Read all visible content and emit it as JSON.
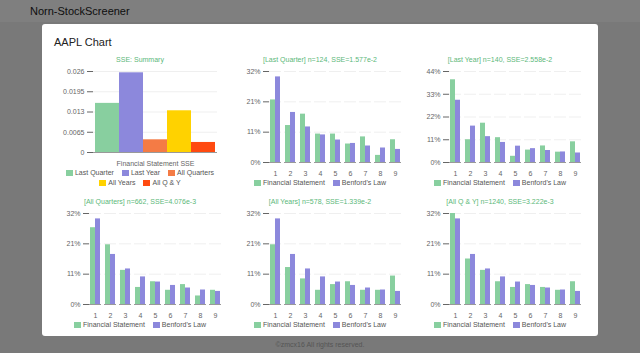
{
  "page": {
    "app_title": "Norn-StockScreener",
    "modal_title": "AAPL Chart",
    "footer": "©zmcx16 All rights reserved."
  },
  "chart_data": [
    {
      "type": "bar",
      "title": "SSE: Summary",
      "categories": [
        "Financial Statement SSE"
      ],
      "series": [
        {
          "name": "Last Quarter",
          "color": "#88cf9f",
          "values": [
            0.01577
          ]
        },
        {
          "name": "Last Year",
          "color": "#8c88dc",
          "values": [
            0.02558
          ]
        },
        {
          "name": "All Quarters",
          "color": "#f47b45",
          "values": [
            0.004076
          ]
        },
        {
          "name": "All Years",
          "color": "#ffd200",
          "values": [
            0.01339
          ]
        },
        {
          "name": "All Q & Y",
          "color": "#ff4a10",
          "values": [
            0.003222
          ]
        }
      ],
      "ylim": [
        0,
        0.026
      ],
      "yticks": [
        0,
        0.0065,
        0.013,
        0.0195,
        0.026
      ],
      "grid": true,
      "legend": "bottom"
    },
    {
      "type": "bar",
      "title": "[Last Quarter] n=124, SSE=1.577e-2",
      "categories": [
        1,
        2,
        3,
        4,
        5,
        6,
        7,
        8,
        9
      ],
      "series": [
        {
          "name": "Financial Statement",
          "color": "#88cf9f",
          "values": [
            22,
            13,
            17,
            10,
            10,
            6.5,
            9,
            2.5,
            8
          ]
        },
        {
          "name": "Benford's Law",
          "color": "#8c88dc",
          "values": [
            30.1,
            17.6,
            12.5,
            9.7,
            7.9,
            6.7,
            5.8,
            5.1,
            4.6
          ]
        }
      ],
      "ylim": [
        0,
        32
      ],
      "yticks": [
        {
          "value": 0,
          "label": "0%"
        },
        {
          "value": 10.67,
          "label": "11%"
        },
        {
          "value": 21.33,
          "label": "21%"
        },
        {
          "value": 32,
          "label": "32%"
        }
      ],
      "grid": true,
      "legend": "bottom"
    },
    {
      "type": "bar",
      "title": "[Last Year] n=140, SSE=2.558e-2",
      "categories": [
        1,
        2,
        3,
        4,
        5,
        6,
        7,
        8,
        9
      ],
      "series": [
        {
          "name": "Financial Statement",
          "color": "#88cf9f",
          "values": [
            40,
            11,
            19,
            12,
            3,
            6,
            8,
            5,
            10
          ]
        },
        {
          "name": "Benford's Law",
          "color": "#8c88dc",
          "values": [
            30.1,
            17.6,
            12.5,
            9.7,
            7.9,
            6.7,
            5.8,
            5.1,
            4.6
          ]
        }
      ],
      "ylim": [
        0,
        44
      ],
      "yticks": [
        {
          "value": 0,
          "label": "0%"
        },
        {
          "value": 11,
          "label": "11%"
        },
        {
          "value": 22,
          "label": "22%"
        },
        {
          "value": 33,
          "label": "33%"
        },
        {
          "value": 44,
          "label": "44%"
        }
      ],
      "grid": true,
      "legend": "bottom"
    },
    {
      "type": "bar",
      "title": "[All Quarters] n=662, SSE=4.076e-3",
      "categories": [
        1,
        2,
        3,
        4,
        5,
        6,
        7,
        8,
        9
      ],
      "series": [
        {
          "name": "Financial Statement",
          "color": "#88cf9f",
          "values": [
            27,
            21,
            12,
            6,
            8,
            5,
            7,
            3,
            5
          ]
        },
        {
          "name": "Benford's Law",
          "color": "#8c88dc",
          "values": [
            30.1,
            17.6,
            12.5,
            9.7,
            7.9,
            6.7,
            5.8,
            5.1,
            4.6
          ]
        }
      ],
      "ylim": [
        0,
        32
      ],
      "yticks": [
        {
          "value": 0,
          "label": "0%"
        },
        {
          "value": 10.67,
          "label": "11%"
        },
        {
          "value": 21.33,
          "label": "21%"
        },
        {
          "value": 32,
          "label": "32%"
        }
      ],
      "grid": true,
      "legend": "bottom"
    },
    {
      "type": "bar",
      "title": "[All Years] n=578, SSE=1.339e-2",
      "categories": [
        1,
        2,
        3,
        4,
        5,
        6,
        7,
        8,
        9
      ],
      "series": [
        {
          "name": "Financial Statement",
          "color": "#88cf9f",
          "values": [
            21,
            13,
            9,
            5,
            7,
            8,
            5,
            5,
            10
          ]
        },
        {
          "name": "Benford's Law",
          "color": "#8c88dc",
          "values": [
            30.1,
            17.6,
            12.5,
            9.7,
            7.9,
            6.7,
            5.8,
            5.1,
            4.6
          ]
        }
      ],
      "ylim": [
        0,
        32
      ],
      "yticks": [
        {
          "value": 0,
          "label": "0%"
        },
        {
          "value": 10.67,
          "label": "11%"
        },
        {
          "value": 21.33,
          "label": "21%"
        },
        {
          "value": 32,
          "label": "32%"
        }
      ],
      "grid": true,
      "legend": "bottom"
    },
    {
      "type": "bar",
      "title": "[All Q & Y] n=1240, SSE=3.222e-3",
      "categories": [
        1,
        2,
        3,
        4,
        5,
        6,
        7,
        8,
        9
      ],
      "series": [
        {
          "name": "Financial Statement",
          "color": "#88cf9f",
          "values": [
            32,
            16,
            12,
            8,
            6,
            7,
            6,
            5,
            8
          ]
        },
        {
          "name": "Benford's Law",
          "color": "#8c88dc",
          "values": [
            30.1,
            17.6,
            12.5,
            9.7,
            7.9,
            6.7,
            5.8,
            5.1,
            4.6
          ]
        }
      ],
      "ylim": [
        0,
        32
      ],
      "yticks": [
        {
          "value": 0,
          "label": "0%"
        },
        {
          "value": 10.67,
          "label": "11%"
        },
        {
          "value": 21.33,
          "label": "21%"
        },
        {
          "value": 32,
          "label": "32%"
        }
      ],
      "grid": true,
      "legend": "bottom"
    }
  ]
}
